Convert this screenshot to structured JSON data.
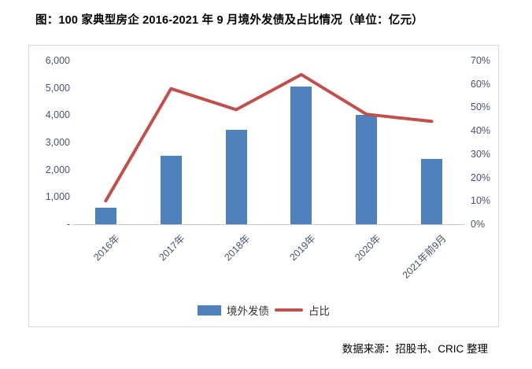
{
  "title": "图：100 家典型房企 2016-2021 年 9 月境外发债及占比情况（单位：亿元）",
  "source": "数据来源：招股书、CRIC 整理",
  "legend": {
    "bar_label": "境外发债",
    "line_label": "占比"
  },
  "colors": {
    "bar": "#4F81BD",
    "line": "#C0504D",
    "axis_text": "#44546A",
    "axis_line": "#C9C9C9",
    "frame_border": "#D9D9D9",
    "title_text": "#000000"
  },
  "chart_data": {
    "type": "bar",
    "subtype": "combo-bar-line-dual-axis",
    "categories": [
      "2016年",
      "2017年",
      "2018年",
      "2019年",
      "2020年",
      "2021年前9月"
    ],
    "series": [
      {
        "name": "境外发债",
        "type": "bar",
        "axis": "left",
        "unit": "亿元",
        "values": [
          600,
          2500,
          3450,
          5050,
          4000,
          2400
        ]
      },
      {
        "name": "占比",
        "type": "line",
        "axis": "right",
        "unit": "%",
        "values": [
          10,
          58,
          49,
          64,
          47,
          44
        ]
      }
    ],
    "left_axis": {
      "min": 0,
      "max": 6000,
      "step": 1000,
      "tick_labels": [
        "6,000",
        "5,000",
        "4,000",
        "3,000",
        "2,000",
        "1,000",
        "-"
      ]
    },
    "right_axis": {
      "min": 0,
      "max": 70,
      "step": 10,
      "tick_labels": [
        "70%",
        "60%",
        "50%",
        "40%",
        "30%",
        "20%",
        "10%",
        "0%"
      ]
    },
    "grid": false,
    "legend_position": "bottom"
  }
}
